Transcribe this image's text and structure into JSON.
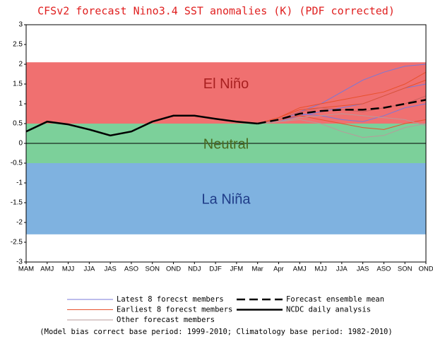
{
  "chart_data": {
    "type": "line",
    "title": "CFSv2 forecast Nino3.4 SST anomalies (K) (PDF corrected)",
    "categories": [
      "MAM",
      "AMJ",
      "MJJ",
      "JJA",
      "JAS",
      "ASO",
      "SON",
      "OND",
      "NDJ",
      "DJF",
      "JFM",
      "Mar",
      "Apr",
      "AMJ",
      "MJJ",
      "JJA",
      "JAS",
      "ASO",
      "SON",
      "OND"
    ],
    "ylim": [
      -3,
      3
    ],
    "yticks": [
      -3,
      -2.5,
      -2,
      -1.5,
      -1,
      -0.5,
      0,
      0.5,
      1,
      1.5,
      2,
      2.5,
      3
    ],
    "hlines": [
      0
    ],
    "bands": [
      {
        "name": "El Niño",
        "from": 0.5,
        "to": 2.05,
        "color": "#f07070",
        "text_color": "#a82020"
      },
      {
        "name": "Neutral",
        "from": -0.5,
        "to": 0.5,
        "color": "#7cd09a",
        "text_color": "#4a6a20"
      },
      {
        "name": "La Niña",
        "from": -2.3,
        "to": -0.5,
        "color": "#7fb2e0",
        "text_color": "#1f3c88"
      }
    ],
    "series": [
      {
        "name": "Latest 8 forecst members",
        "color": "#7878d8",
        "width": 1,
        "style": "solid",
        "values": [
          null,
          null,
          null,
          null,
          null,
          null,
          null,
          null,
          null,
          null,
          null,
          0.5,
          0.6,
          0.8,
          1.0,
          1.3,
          1.6,
          1.8,
          1.95,
          2.0
        ]
      },
      {
        "name": "Latest 8 forecst members",
        "color": "#7878d8",
        "width": 1,
        "style": "solid",
        "values": [
          null,
          null,
          null,
          null,
          null,
          null,
          null,
          null,
          null,
          null,
          null,
          0.5,
          0.55,
          0.7,
          0.8,
          0.9,
          1.0,
          1.2,
          1.4,
          1.5
        ]
      },
      {
        "name": "Latest 8 forecst members",
        "color": "#7878d8",
        "width": 1,
        "style": "solid",
        "values": [
          null,
          null,
          null,
          null,
          null,
          null,
          null,
          null,
          null,
          null,
          null,
          0.5,
          0.6,
          0.75,
          0.7,
          0.6,
          0.55,
          0.7,
          0.9,
          1.0
        ]
      },
      {
        "name": "Earliest 8 forecst members",
        "color": "#e8502c",
        "width": 1,
        "style": "solid",
        "values": [
          null,
          null,
          null,
          null,
          null,
          null,
          null,
          null,
          null,
          null,
          null,
          0.5,
          0.65,
          0.85,
          0.9,
          0.95,
          1.0,
          1.2,
          1.4,
          1.6
        ]
      },
      {
        "name": "Earliest 8 forecst members",
        "color": "#e8502c",
        "width": 1,
        "style": "solid",
        "values": [
          null,
          null,
          null,
          null,
          null,
          null,
          null,
          null,
          null,
          null,
          null,
          0.5,
          0.6,
          0.7,
          0.6,
          0.5,
          0.4,
          0.35,
          0.5,
          0.6
        ]
      },
      {
        "name": "Earliest 8 forecst members",
        "color": "#e8502c",
        "width": 1,
        "style": "solid",
        "values": [
          null,
          null,
          null,
          null,
          null,
          null,
          null,
          null,
          null,
          null,
          null,
          0.5,
          0.65,
          0.9,
          1.0,
          1.1,
          1.2,
          1.3,
          1.5,
          1.8
        ]
      },
      {
        "name": "Other forecast members",
        "color": "#b89a9a",
        "width": 1,
        "style": "solid",
        "values": [
          null,
          null,
          null,
          null,
          null,
          null,
          null,
          null,
          null,
          null,
          null,
          0.5,
          0.55,
          0.6,
          0.5,
          0.3,
          0.15,
          0.2,
          0.4,
          0.5
        ]
      },
      {
        "name": "Other forecast members",
        "color": "#c86060",
        "width": 1,
        "style": "solid",
        "values": [
          null,
          null,
          null,
          null,
          null,
          null,
          null,
          null,
          null,
          null,
          null,
          0.5,
          0.6,
          0.8,
          0.9,
          0.85,
          0.8,
          0.9,
          1.0,
          1.2
        ]
      },
      {
        "name": "Other forecast members",
        "color": "#b89a9a",
        "width": 1,
        "style": "solid",
        "values": [
          null,
          null,
          null,
          null,
          null,
          null,
          null,
          null,
          null,
          null,
          null,
          0.5,
          0.55,
          0.65,
          0.7,
          0.75,
          0.7,
          0.65,
          0.6,
          0.45
        ]
      },
      {
        "name": "Forecast ensemble mean",
        "color": "#000000",
        "width": 2.5,
        "style": "dashed",
        "values": [
          null,
          null,
          null,
          null,
          null,
          null,
          null,
          null,
          null,
          null,
          null,
          0.5,
          0.6,
          0.75,
          0.82,
          0.85,
          0.85,
          0.9,
          1.0,
          1.1
        ]
      },
      {
        "name": "NCDC daily analysis",
        "color": "#000000",
        "width": 2.5,
        "style": "solid",
        "values": [
          0.3,
          0.55,
          0.48,
          0.35,
          0.2,
          0.3,
          0.55,
          0.7,
          0.7,
          0.62,
          0.55,
          0.5,
          null,
          null,
          null,
          null,
          null,
          null,
          null,
          null
        ]
      }
    ],
    "legend": [
      0,
      3,
      6,
      9,
      10
    ],
    "footnote": "(Model bias correct base period: 1999-2010; Climatology base period: 1982-2010)"
  }
}
